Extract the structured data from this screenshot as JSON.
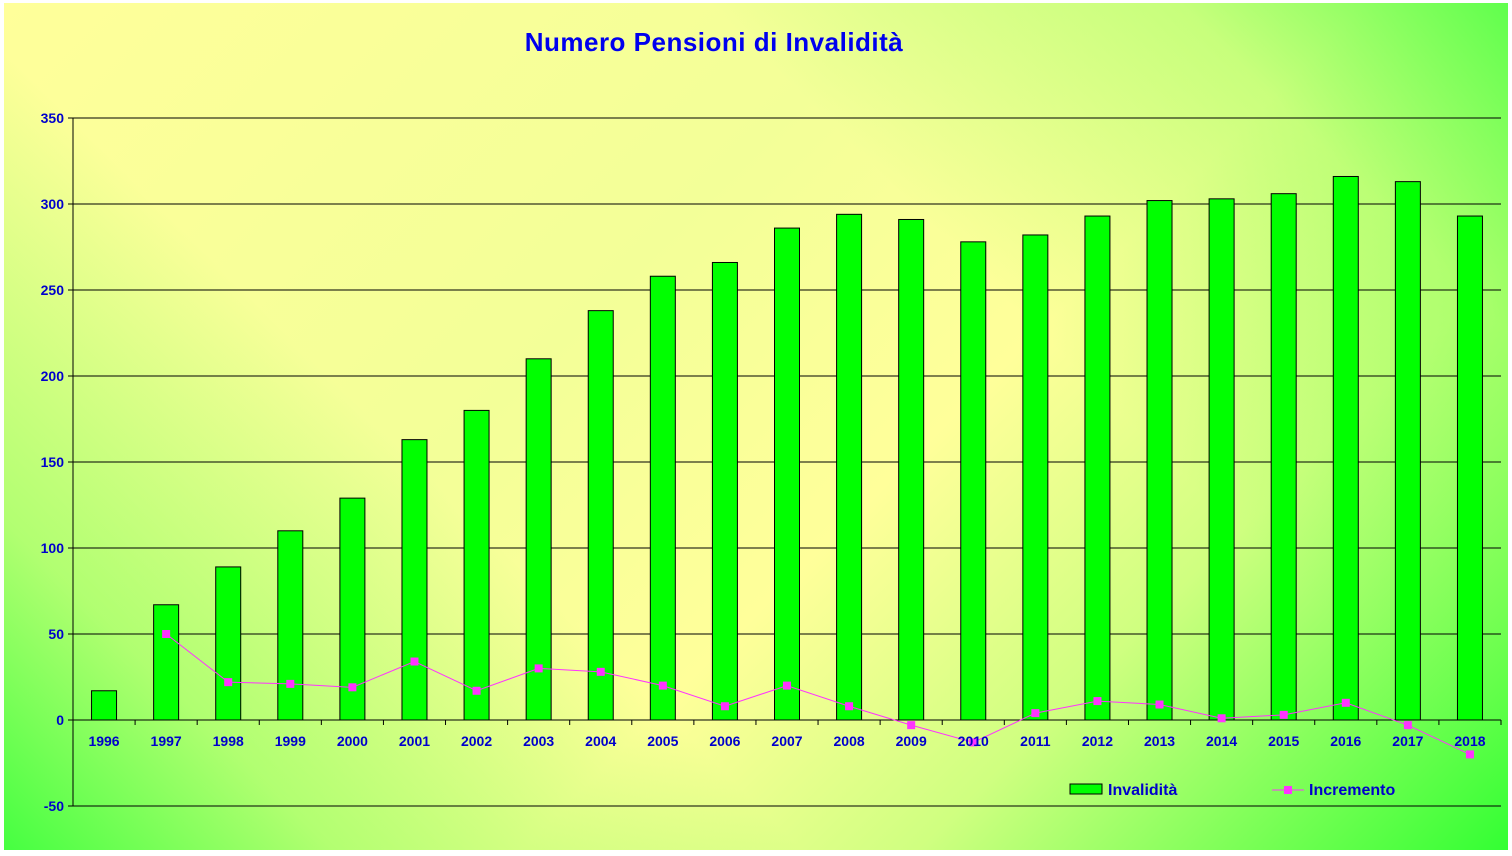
{
  "chart_data": {
    "type": "bar",
    "title": "Numero Pensioni di Invalidità",
    "xlabel": "",
    "ylabel": "",
    "ylim": [
      -50,
      350
    ],
    "yticks": [
      -50,
      0,
      50,
      100,
      150,
      200,
      250,
      300,
      350
    ],
    "grid": true,
    "legend_position": "bottom-right",
    "categories": [
      "1996",
      "1997",
      "1998",
      "1999",
      "2000",
      "2001",
      "2002",
      "2003",
      "2004",
      "2005",
      "2006",
      "2007",
      "2008",
      "2009",
      "2010",
      "2011",
      "2012",
      "2013",
      "2014",
      "2015",
      "2016",
      "2017",
      "2018"
    ],
    "series": [
      {
        "name": "Invalidità",
        "type": "bar",
        "color": "#00ff00",
        "values": [
          17,
          67,
          89,
          110,
          129,
          163,
          180,
          210,
          238,
          258,
          266,
          286,
          294,
          291,
          278,
          282,
          293,
          302,
          303,
          306,
          316,
          313,
          293
        ]
      },
      {
        "name": "Incremento",
        "type": "line",
        "color": "#ff33ff",
        "values": [
          null,
          50,
          22,
          21,
          19,
          34,
          17,
          30,
          28,
          20,
          8,
          20,
          8,
          -3,
          -13,
          4,
          11,
          9,
          1,
          3,
          10,
          -3,
          -20
        ]
      }
    ]
  }
}
